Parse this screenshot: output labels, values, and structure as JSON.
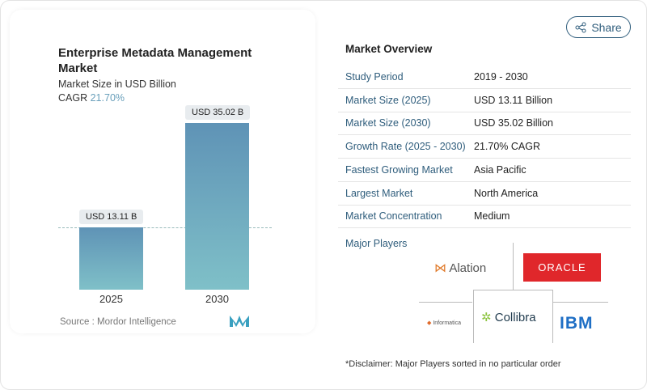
{
  "chart": {
    "title": "Enterprise Metadata Management Market",
    "subtitle": "Market Size in USD Billion",
    "cagr_label": "CAGR",
    "cagr_value": "21.70%",
    "source": "Source :  Mordor Intelligence"
  },
  "chart_data": {
    "type": "bar",
    "categories": [
      "2025",
      "2030"
    ],
    "values": [
      13.11,
      35.02
    ],
    "data_labels": [
      "USD 13.11 B",
      "USD 35.02 B"
    ],
    "title": "Enterprise Metadata Management Market",
    "ylabel": "Market Size in USD Billion",
    "colors": [
      "#5f93b6",
      "#7fc0c8"
    ]
  },
  "share": {
    "label": "Share",
    "icon": "share-icon"
  },
  "overview": {
    "title": "Market Overview",
    "rows": [
      {
        "k": "Study Period",
        "v": "2019 - 2030"
      },
      {
        "k": "Market Size (2025)",
        "v": "USD 13.11 Billion"
      },
      {
        "k": "Market Size (2030)",
        "v": "USD 35.02 Billion"
      },
      {
        "k": "Growth Rate (2025 - 2030)",
        "v": "21.70% CAGR"
      },
      {
        "k": "Fastest Growing Market",
        "v": "Asia Pacific"
      },
      {
        "k": "Largest Market",
        "v": "North America"
      },
      {
        "k": "Market Concentration",
        "v": "Medium"
      }
    ]
  },
  "players": {
    "title": "Major Players",
    "list": [
      "Alation",
      "ORACLE",
      "Informatica",
      "Collibra",
      "IBM"
    ]
  },
  "disclaimer": "*Disclaimer: Major Players sorted in no particular order"
}
